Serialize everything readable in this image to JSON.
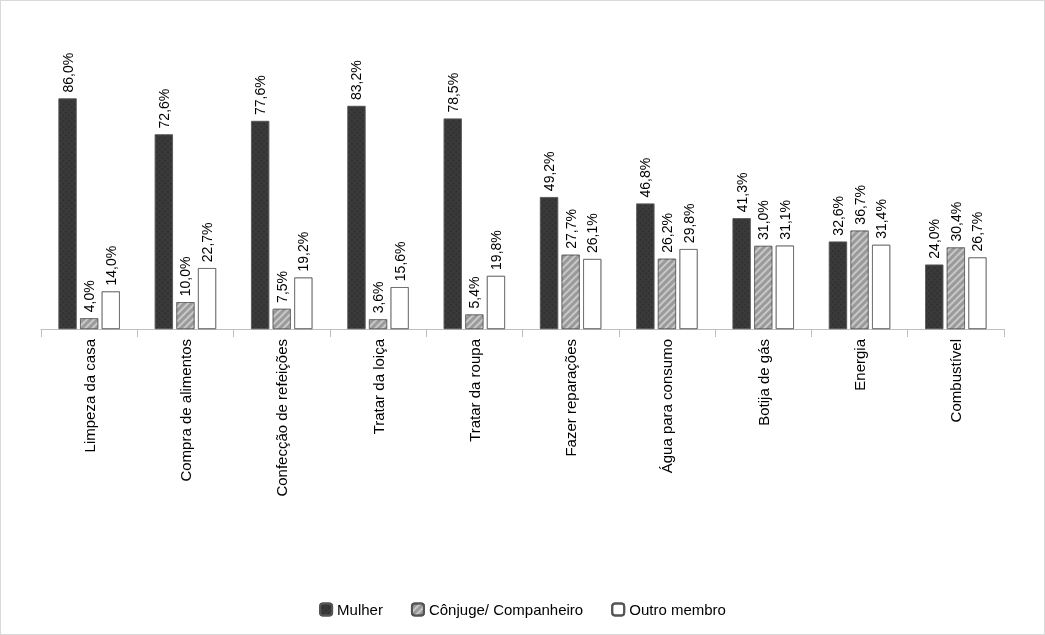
{
  "chart_data": {
    "type": "bar",
    "categories": [
      "Limpeza da casa",
      "Compra de alimentos",
      "Confecção de refeições",
      "Tratar da loiça",
      "Tratar da roupa",
      "Fazer reparações",
      "Água para consumo",
      "Botija de gás",
      "Energia",
      "Combustível"
    ],
    "series": [
      {
        "name": "Mulher",
        "color": "#3a3a3a",
        "values": [
          86.0,
          72.6,
          77.6,
          83.2,
          78.5,
          49.2,
          46.8,
          41.3,
          32.6,
          24.0
        ],
        "value_labels": [
          "86,0%",
          "72,6%",
          "77,6%",
          "83,2%",
          "78,5%",
          "49,2%",
          "46,8%",
          "41,3%",
          "32,6%",
          "24,0%"
        ]
      },
      {
        "name": "Cônjuge/ Companheiro",
        "color": "#9a9a9a",
        "values": [
          4.0,
          10.0,
          7.5,
          3.6,
          5.4,
          27.7,
          26.2,
          31.0,
          36.7,
          30.4
        ],
        "value_labels": [
          "4,0%",
          "10,0%",
          "7,5%",
          "3,6%",
          "5,4%",
          "27,7%",
          "26,2%",
          "31,0%",
          "36,7%",
          "30,4%"
        ]
      },
      {
        "name": "Outro membro",
        "color": "#ffffff",
        "values": [
          14.0,
          22.7,
          19.2,
          15.6,
          19.8,
          26.1,
          29.8,
          31.1,
          31.4,
          26.7
        ],
        "value_labels": [
          "14,0%",
          "22,7%",
          "19,2%",
          "15,6%",
          "19,8%",
          "26,1%",
          "29,8%",
          "31,1%",
          "31,4%",
          "26,7%"
        ]
      }
    ],
    "legend": "bottom"
  }
}
